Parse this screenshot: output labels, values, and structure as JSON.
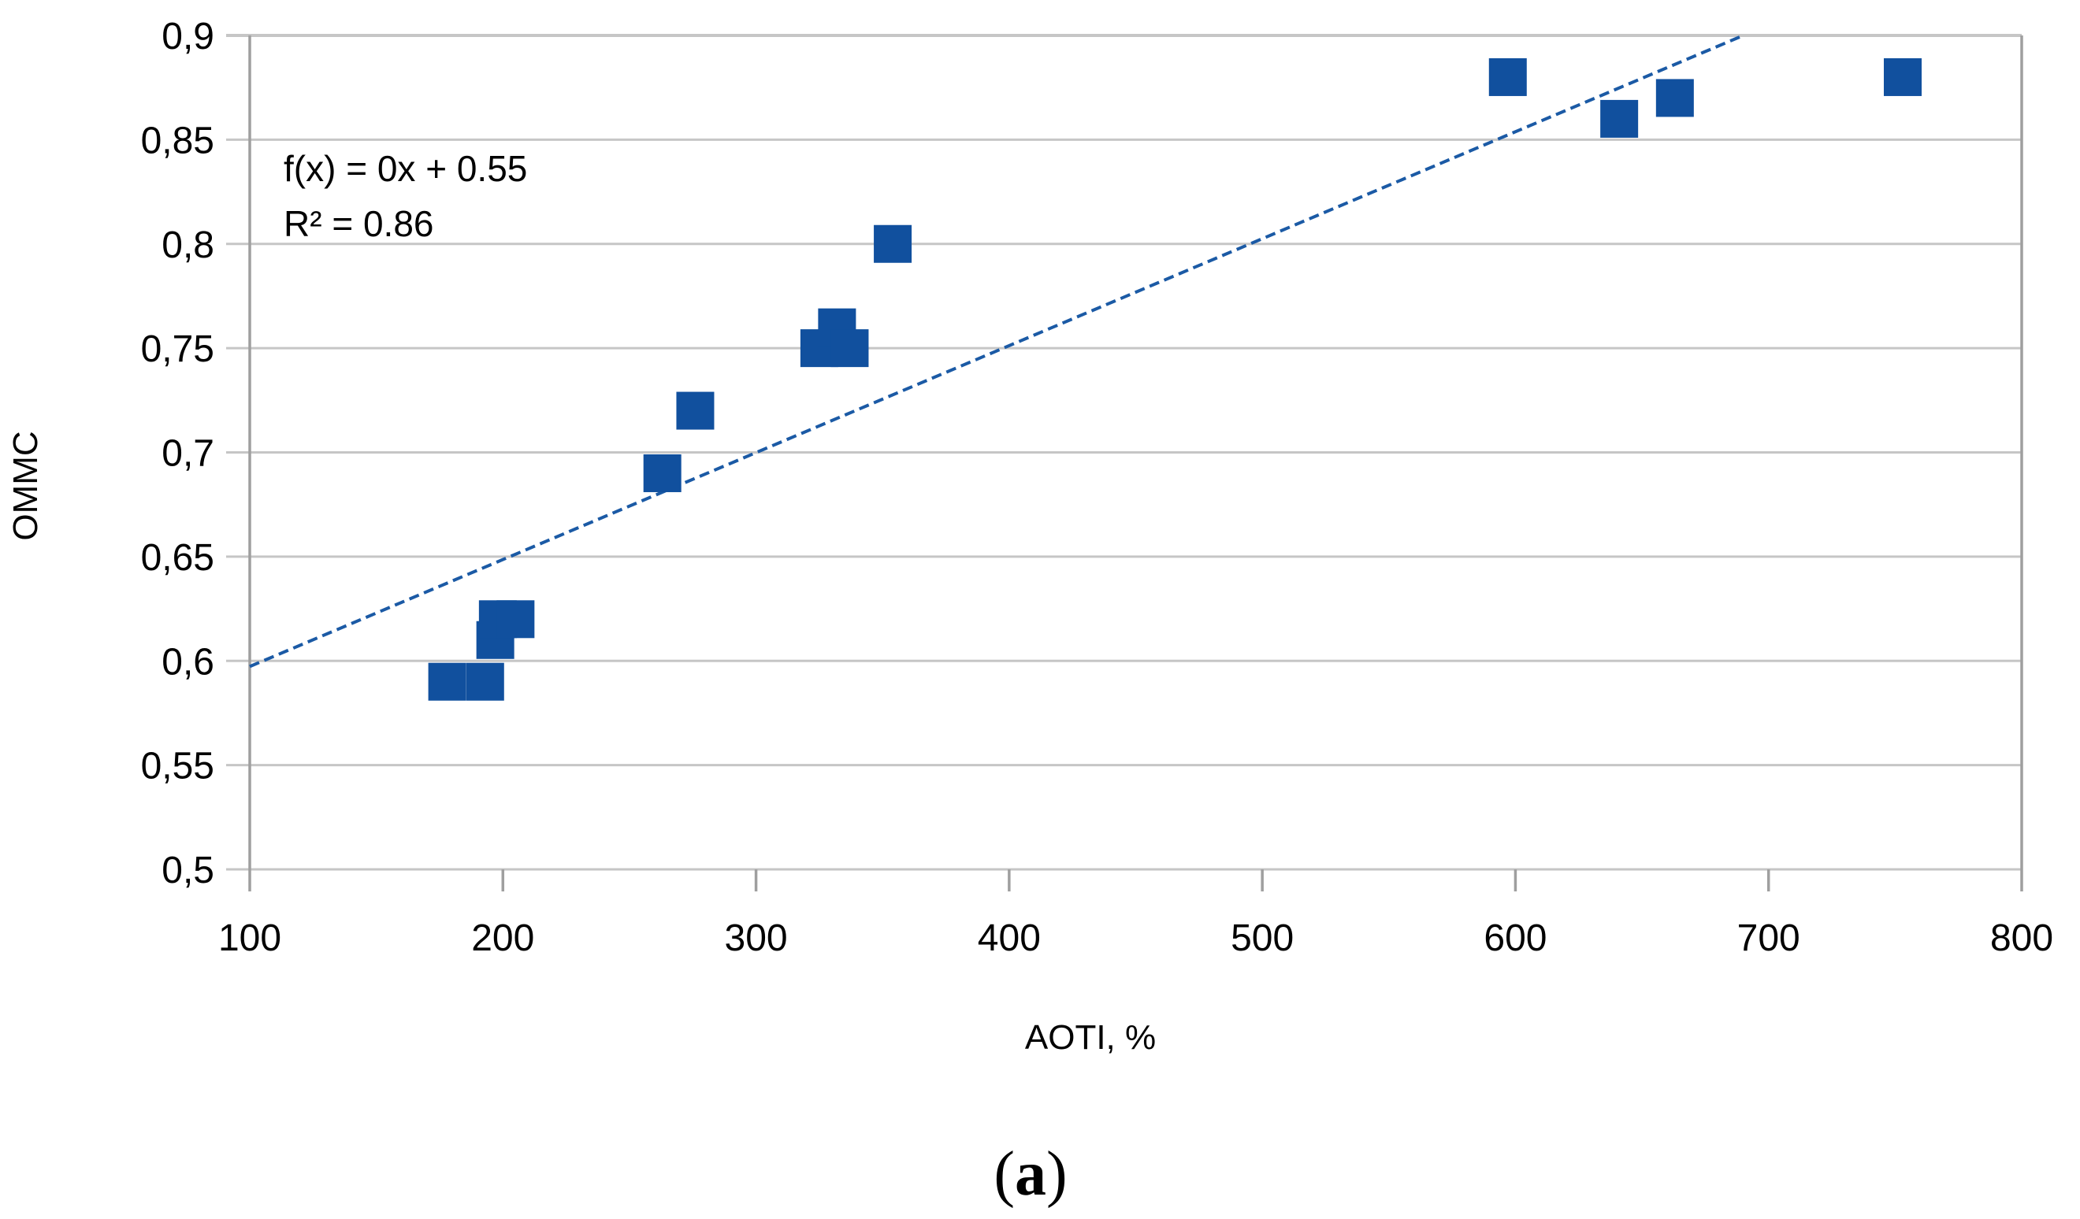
{
  "chart_data": {
    "type": "scatter",
    "title": "",
    "xlabel": "AOTI, %",
    "ylabel": "OMMC",
    "xlim": [
      100,
      800
    ],
    "ylim": [
      0.5,
      0.9
    ],
    "grid": "horizontal",
    "legend": "none",
    "x_ticks": [
      {
        "v": 100,
        "label": "100"
      },
      {
        "v": 200,
        "label": "200"
      },
      {
        "v": 300,
        "label": "300"
      },
      {
        "v": 400,
        "label": "400"
      },
      {
        "v": 500,
        "label": "500"
      },
      {
        "v": 600,
        "label": "600"
      },
      {
        "v": 700,
        "label": "700"
      },
      {
        "v": 800,
        "label": "800"
      }
    ],
    "y_ticks": [
      {
        "v": 0.5,
        "label": "0,5"
      },
      {
        "v": 0.55,
        "label": "0,55"
      },
      {
        "v": 0.6,
        "label": "0,6"
      },
      {
        "v": 0.65,
        "label": "0,65"
      },
      {
        "v": 0.7,
        "label": "0,7"
      },
      {
        "v": 0.75,
        "label": "0,75"
      },
      {
        "v": 0.8,
        "label": "0,8"
      },
      {
        "v": 0.85,
        "label": "0,85"
      },
      {
        "v": 0.9,
        "label": "0,9"
      }
    ],
    "points": [
      [
        178,
        0.59
      ],
      [
        193,
        0.59
      ],
      [
        197,
        0.61
      ],
      [
        198,
        0.62
      ],
      [
        205,
        0.62
      ],
      [
        263,
        0.69
      ],
      [
        276,
        0.72
      ],
      [
        325,
        0.75
      ],
      [
        332,
        0.76
      ],
      [
        337,
        0.75
      ],
      [
        354,
        0.8
      ],
      [
        597,
        0.88
      ],
      [
        641,
        0.86
      ],
      [
        663,
        0.87
      ],
      [
        753,
        0.88
      ]
    ],
    "trendline": {
      "slope": 0.000513,
      "intercept": 0.546,
      "x_start": 100,
      "x_end": 690,
      "label_lines": [
        "f(x) = 0x + 0.55",
        "R² = 0.86"
      ]
    },
    "caption": "(a)",
    "colors": {
      "marker": "#11509e",
      "trend": "#1b5aa5",
      "grid": "#c6c6c6",
      "axis": "#9f9f9f",
      "text": "#000000"
    }
  }
}
